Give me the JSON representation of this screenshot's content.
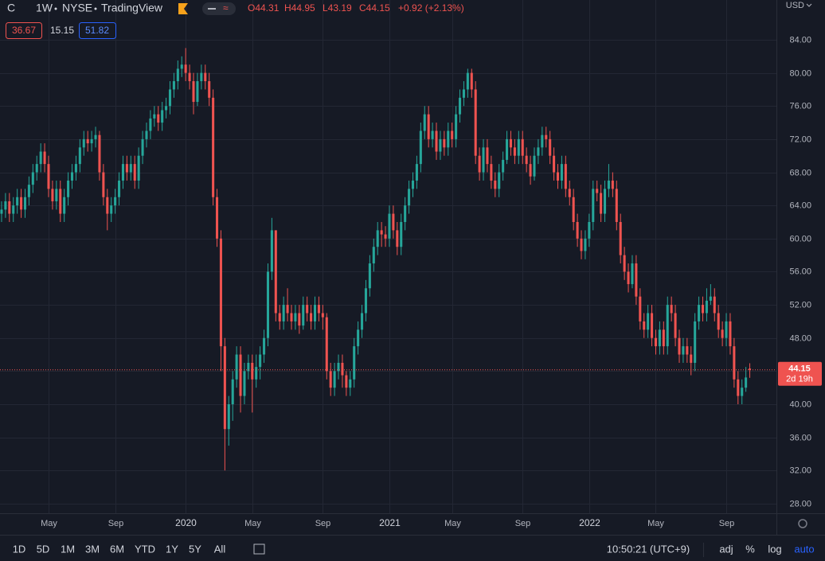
{
  "header": {
    "symbol": "C",
    "interval": "1W",
    "exchange": "NYSE",
    "source": "TradingView",
    "legend": {
      "open": "O44.31",
      "high": "H44.95",
      "low": "L43.19",
      "close": "C44.15",
      "change": "+0.92 (+2.13%)"
    },
    "indicators": [
      "36.67",
      "15.15",
      "51.82"
    ]
  },
  "chart_data": {
    "type": "candlestick",
    "currency": "USD",
    "up_color": "#26a69a",
    "down_color": "#ef5350",
    "last_price": 44.15,
    "countdown": "2d 19h",
    "ylim": [
      26.84,
      88.8
    ],
    "yticks": [
      {
        "value": 28,
        "label": "28.00"
      },
      {
        "value": 32,
        "label": "32.00"
      },
      {
        "value": 36,
        "label": "36.00"
      },
      {
        "value": 40,
        "label": "40.00"
      },
      {
        "value": 44,
        "label": "44.00"
      },
      {
        "value": 48,
        "label": "48.00"
      },
      {
        "value": 52,
        "label": "52.00"
      },
      {
        "value": 56,
        "label": "56.00"
      },
      {
        "value": 60,
        "label": "60.00"
      },
      {
        "value": 64,
        "label": "64.00"
      },
      {
        "value": 68,
        "label": "68.00"
      },
      {
        "value": 72,
        "label": "72.00"
      },
      {
        "value": 76,
        "label": "76.00"
      },
      {
        "value": 80,
        "label": "80.00"
      },
      {
        "value": 84,
        "label": "84.00"
      }
    ],
    "xlim": [
      -0.4,
      197.8
    ],
    "xticks": [
      {
        "value": 12,
        "label": "May"
      },
      {
        "value": 29,
        "label": "Sep"
      },
      {
        "value": 47,
        "label": "2020"
      },
      {
        "value": 64,
        "label": "May"
      },
      {
        "value": 82,
        "label": "Sep"
      },
      {
        "value": 99,
        "label": "2021"
      },
      {
        "value": 115,
        "label": "May"
      },
      {
        "value": 133,
        "label": "Sep"
      },
      {
        "value": 150,
        "label": "2022"
      },
      {
        "value": 167,
        "label": "May"
      },
      {
        "value": 185,
        "label": "Sep"
      }
    ],
    "ohlc": [
      [
        63,
        64.5,
        62,
        63.5
      ],
      [
        63.5,
        65.5,
        62.5,
        64.5
      ],
      [
        64.5,
        65.5,
        62,
        63
      ],
      [
        63,
        65,
        62,
        64
      ],
      [
        64,
        66,
        63,
        65
      ],
      [
        65,
        66,
        62.5,
        63.5
      ],
      [
        63.5,
        66,
        62.5,
        65
      ],
      [
        65,
        67.5,
        64,
        66.5
      ],
      [
        66.5,
        69,
        65.5,
        68
      ],
      [
        68,
        70,
        67,
        69
      ],
      [
        69,
        71.5,
        68,
        70.5
      ],
      [
        70.5,
        71.5,
        68,
        69
      ],
      [
        69,
        70,
        65,
        66
      ],
      [
        66,
        67,
        63.5,
        64.5
      ],
      [
        64.5,
        67,
        63.5,
        66
      ],
      [
        66,
        67,
        62,
        63
      ],
      [
        63,
        66,
        62,
        65
      ],
      [
        65,
        68,
        64,
        67
      ],
      [
        67,
        69,
        66,
        68
      ],
      [
        68,
        70,
        67,
        69
      ],
      [
        69,
        72,
        68,
        71
      ],
      [
        71,
        73,
        70,
        72
      ],
      [
        72,
        73,
        70.5,
        71.5
      ],
      [
        71.5,
        73,
        70.5,
        72
      ],
      [
        72,
        73.5,
        71,
        72.5
      ],
      [
        72.5,
        73,
        67,
        68
      ],
      [
        68,
        69,
        64,
        65
      ],
      [
        65,
        66,
        61,
        63
      ],
      [
        63,
        65,
        62,
        64
      ],
      [
        64,
        66,
        63,
        65
      ],
      [
        65,
        68,
        64,
        67
      ],
      [
        67,
        70,
        66,
        69
      ],
      [
        69,
        70,
        67,
        68
      ],
      [
        68,
        70,
        67,
        69
      ],
      [
        69,
        70,
        66,
        67
      ],
      [
        67,
        71,
        66,
        70
      ],
      [
        70,
        73,
        69,
        72
      ],
      [
        72,
        74,
        71,
        73
      ],
      [
        73,
        75.5,
        72,
        74.5
      ],
      [
        74.5,
        76,
        73.5,
        75
      ],
      [
        75,
        76,
        73,
        74
      ],
      [
        74,
        76.5,
        73,
        75.5
      ],
      [
        75.5,
        77,
        74.5,
        76
      ],
      [
        76,
        79,
        75,
        78
      ],
      [
        78,
        80,
        77,
        79
      ],
      [
        79,
        81.5,
        78,
        80.5
      ],
      [
        80.5,
        82,
        79.5,
        81
      ],
      [
        81,
        83,
        79,
        80
      ],
      [
        80,
        81,
        78,
        79
      ],
      [
        79,
        80,
        75,
        76.5
      ],
      [
        76.5,
        80,
        76,
        79
      ],
      [
        79,
        81,
        78,
        80
      ],
      [
        80,
        81,
        78,
        79
      ],
      [
        79,
        80,
        76,
        77
      ],
      [
        77,
        78,
        64,
        65
      ],
      [
        65,
        66,
        59,
        60
      ],
      [
        60,
        61,
        44,
        47
      ],
      [
        47,
        48,
        32,
        37
      ],
      [
        37,
        41,
        35,
        40
      ],
      [
        40,
        44,
        38,
        43
      ],
      [
        43,
        47,
        42,
        46
      ],
      [
        46,
        47,
        39,
        41
      ],
      [
        41,
        45,
        40,
        44
      ],
      [
        44,
        46,
        43,
        45
      ],
      [
        45,
        46,
        39,
        43
      ],
      [
        43,
        46,
        42,
        44.5
      ],
      [
        44.5,
        47,
        43,
        46
      ],
      [
        46,
        49,
        45,
        48
      ],
      [
        48,
        57,
        47,
        56
      ],
      [
        56,
        62.5,
        55,
        61
      ],
      [
        61,
        61,
        50,
        51
      ],
      [
        51,
        52,
        49,
        50
      ],
      [
        50,
        53,
        49,
        52
      ],
      [
        52,
        54,
        50,
        51
      ],
      [
        51,
        52,
        49,
        50
      ],
      [
        50,
        52,
        49,
        51
      ],
      [
        51,
        52,
        48.5,
        49.5
      ],
      [
        49.5,
        53,
        49,
        52
      ],
      [
        52,
        53,
        50,
        51
      ],
      [
        51,
        52,
        49,
        50
      ],
      [
        50,
        53,
        49,
        52
      ],
      [
        52,
        53,
        50,
        51
      ],
      [
        51,
        52,
        49,
        50.5
      ],
      [
        50.5,
        51,
        43,
        44
      ],
      [
        44,
        45,
        41,
        42
      ],
      [
        42,
        45,
        41,
        44
      ],
      [
        44,
        46,
        43,
        45
      ],
      [
        45,
        46,
        42,
        43.5
      ],
      [
        43.5,
        44,
        41,
        42
      ],
      [
        42,
        44,
        41,
        43
      ],
      [
        43,
        48,
        42,
        47
      ],
      [
        47,
        50,
        46,
        49
      ],
      [
        49,
        52,
        48,
        51
      ],
      [
        51,
        55,
        50,
        54
      ],
      [
        54,
        58,
        53,
        57
      ],
      [
        57,
        60,
        56,
        59
      ],
      [
        59,
        62,
        58,
        61
      ],
      [
        61,
        62,
        59,
        60.5
      ],
      [
        60.5,
        61.5,
        59,
        60
      ],
      [
        60,
        64,
        59,
        63
      ],
      [
        63,
        64,
        60,
        61
      ],
      [
        61,
        62,
        58,
        59
      ],
      [
        59,
        63,
        58,
        62
      ],
      [
        62,
        65,
        61,
        64
      ],
      [
        64,
        67,
        63,
        66
      ],
      [
        66,
        68,
        65,
        67
      ],
      [
        67,
        70,
        66,
        69
      ],
      [
        69,
        74,
        68,
        73
      ],
      [
        73,
        76,
        72,
        75
      ],
      [
        75,
        76,
        71,
        72
      ],
      [
        72,
        74,
        71,
        73
      ],
      [
        73,
        74,
        69.5,
        70.5
      ],
      [
        70.5,
        73,
        69.5,
        72
      ],
      [
        72,
        73,
        70,
        71
      ],
      [
        71,
        74,
        70,
        73
      ],
      [
        73,
        74,
        71,
        72
      ],
      [
        72,
        76,
        71,
        75
      ],
      [
        75,
        78,
        74,
        77
      ],
      [
        77,
        79,
        76,
        78
      ],
      [
        78,
        80.5,
        77,
        80
      ],
      [
        80,
        80.5,
        77,
        78
      ],
      [
        78,
        79,
        69,
        70
      ],
      [
        70,
        71,
        67,
        68
      ],
      [
        68,
        72,
        67,
        71
      ],
      [
        71,
        72,
        68,
        69
      ],
      [
        69,
        70,
        66,
        67
      ],
      [
        67,
        68,
        65,
        66
      ],
      [
        66,
        69,
        65,
        68
      ],
      [
        68,
        70.5,
        67,
        69.5
      ],
      [
        69.5,
        73,
        69,
        72
      ],
      [
        72,
        73,
        70,
        71
      ],
      [
        71,
        72,
        69,
        70
      ],
      [
        70,
        73,
        69,
        72
      ],
      [
        72,
        73,
        69,
        70
      ],
      [
        70,
        71,
        68,
        69
      ],
      [
        69,
        70,
        66.5,
        67.5
      ],
      [
        67.5,
        71,
        67,
        70
      ],
      [
        70,
        72,
        69,
        71
      ],
      [
        71,
        73.5,
        70,
        72.5
      ],
      [
        72.5,
        73.5,
        71,
        72
      ],
      [
        72,
        73,
        69,
        70
      ],
      [
        70,
        71,
        67,
        68
      ],
      [
        68,
        69,
        66,
        67
      ],
      [
        67,
        70,
        66,
        69
      ],
      [
        69,
        70,
        65,
        66
      ],
      [
        66,
        67,
        64,
        65
      ],
      [
        65,
        66,
        61,
        62
      ],
      [
        62,
        63,
        59,
        60
      ],
      [
        60,
        61,
        57.5,
        58.5
      ],
      [
        58.5,
        61,
        57.5,
        60
      ],
      [
        60,
        63,
        59,
        62
      ],
      [
        62,
        67,
        61,
        66
      ],
      [
        66,
        67,
        64.5,
        65.5
      ],
      [
        65.5,
        66.5,
        62,
        63
      ],
      [
        63,
        67,
        62,
        66
      ],
      [
        66,
        69,
        65,
        67
      ],
      [
        67,
        68,
        65,
        66
      ],
      [
        66,
        67,
        61,
        62
      ],
      [
        62,
        63,
        57,
        58
      ],
      [
        58,
        59,
        55,
        56
      ],
      [
        56,
        57,
        53.5,
        54.5
      ],
      [
        54.5,
        58,
        54,
        57
      ],
      [
        57,
        58,
        52,
        53
      ],
      [
        53,
        54,
        49,
        50
      ],
      [
        50,
        51,
        48,
        49
      ],
      [
        49,
        52,
        48,
        51
      ],
      [
        51,
        52,
        47,
        48
      ],
      [
        48,
        49,
        46,
        47
      ],
      [
        47,
        50,
        46,
        49
      ],
      [
        49,
        50,
        46,
        47
      ],
      [
        47,
        53,
        46,
        52
      ],
      [
        52,
        53,
        50,
        51
      ],
      [
        51,
        52,
        47,
        48
      ],
      [
        48,
        49,
        45,
        46
      ],
      [
        46,
        48,
        45,
        47
      ],
      [
        47,
        48,
        45,
        46
      ],
      [
        46,
        47,
        43.5,
        45
      ],
      [
        45,
        51,
        44,
        50
      ],
      [
        50,
        53,
        49,
        52
      ],
      [
        52,
        53,
        50,
        51
      ],
      [
        51,
        54,
        50,
        52.5
      ],
      [
        52.5,
        54.5,
        52,
        53
      ],
      [
        53,
        54,
        50,
        51
      ],
      [
        51,
        52,
        48,
        49
      ],
      [
        49,
        50,
        47,
        48
      ],
      [
        48,
        51,
        47,
        50
      ],
      [
        50,
        51,
        46,
        47
      ],
      [
        47,
        48,
        42,
        43
      ],
      [
        43,
        44,
        40,
        41
      ],
      [
        41,
        43,
        40,
        42
      ],
      [
        42,
        44.5,
        41.5,
        43.23
      ],
      [
        44.31,
        44.95,
        43.19,
        44.15
      ]
    ]
  },
  "toolbar": {
    "periods": [
      "1D",
      "5D",
      "1M",
      "3M",
      "6M",
      "YTD",
      "1Y",
      "5Y",
      "All"
    ],
    "time": "10:50:21 (UTC+9)",
    "options": [
      "adj",
      "%",
      "log",
      "auto"
    ]
  }
}
